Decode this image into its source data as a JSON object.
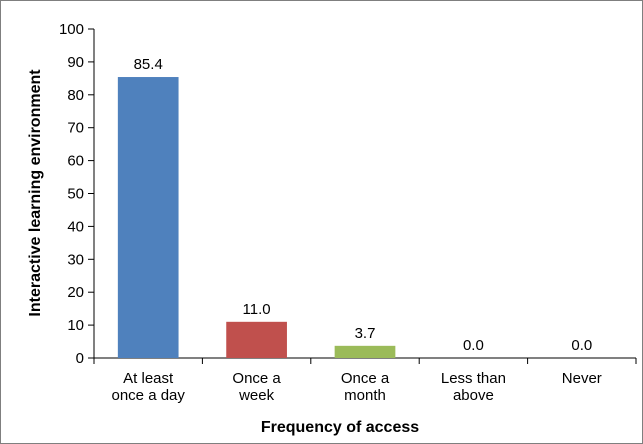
{
  "chart_data": {
    "type": "bar",
    "categories": [
      [
        "At least",
        "once a day"
      ],
      [
        "Once a",
        "week"
      ],
      [
        "Once a",
        "month"
      ],
      [
        "Less than",
        "above"
      ],
      [
        "Never"
      ]
    ],
    "values": [
      85.4,
      11.0,
      3.7,
      0.0,
      0.0
    ],
    "data_labels": [
      "85.4",
      "11.0",
      "3.7",
      "0.0",
      "0.0"
    ],
    "bar_colors": [
      "#4f81bd",
      "#c0504d",
      "#9bbb59",
      "#8064a2",
      "#4bacc6"
    ],
    "title": "",
    "xlabel": "Frequency of access",
    "ylabel": "Interactive learning environment",
    "ylim": [
      0,
      100
    ],
    "yticks": [
      0,
      10,
      20,
      30,
      40,
      50,
      60,
      70,
      80,
      90,
      100
    ],
    "grid": false,
    "legend": "none"
  }
}
